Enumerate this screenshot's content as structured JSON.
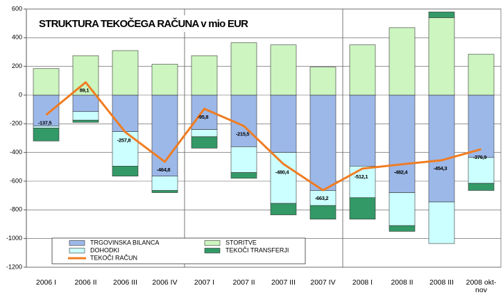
{
  "chart_data": {
    "type": "bar",
    "title": "STRUKTURA TEKOČEGA RAČUNA v mio EUR",
    "stacked": true,
    "categories": [
      "2006 I",
      "2006 II",
      "2006 III",
      "2006 IV",
      "2007 I",
      "2007 II",
      "2007 III",
      "2007 IV",
      "2008 I",
      "2008 II",
      "2008 III",
      "2008 okt-nov"
    ],
    "series": [
      {
        "name": "TRGOVINSKA BILANCA",
        "color": "#9cb8e8",
        "values": [
          -215,
          -115,
          -255,
          -565,
          -240,
          -360,
          -400,
          -665,
          -495,
          -680,
          -745,
          -435
        ]
      },
      {
        "name": "DOHODKI",
        "color": "#ccffff",
        "values": [
          -15,
          -60,
          -240,
          -100,
          -50,
          -180,
          -355,
          -105,
          -220,
          -230,
          -290,
          -180
        ]
      },
      {
        "name": "STORITVE",
        "color": "#ccf5bf",
        "values": [
          185,
          275,
          310,
          215,
          275,
          365,
          350,
          195,
          350,
          470,
          540,
          285
        ]
      },
      {
        "name": "TEKOČI TRANSFERJI",
        "color": "#339966",
        "values": [
          -90,
          -15,
          -70,
          -15,
          -80,
          -40,
          -80,
          -95,
          -150,
          -40,
          40,
          -50
        ]
      },
      {
        "name": "TEKOČI RAČUN",
        "color": "#f07c21",
        "type": "line",
        "values": [
          -137.5,
          89.1,
          -257.8,
          -464.8,
          -95.8,
          -215.5,
          -480.4,
          -663.2,
          -512.1,
          -482.4,
          -454.3,
          -376.9
        ],
        "value_labels": [
          "-137,5",
          "89,1",
          "-257,8",
          "-464,8",
          "-95,8",
          "-215,5",
          "-480,4",
          "-663,2",
          "-512,1",
          "-482,4",
          "-454,3",
          "-376,9"
        ]
      }
    ],
    "ylim": [
      -1200,
      600
    ],
    "yticks": [
      -1200,
      -1000,
      -800,
      -600,
      -400,
      -200,
      0,
      200,
      400,
      600
    ],
    "grid": true
  }
}
